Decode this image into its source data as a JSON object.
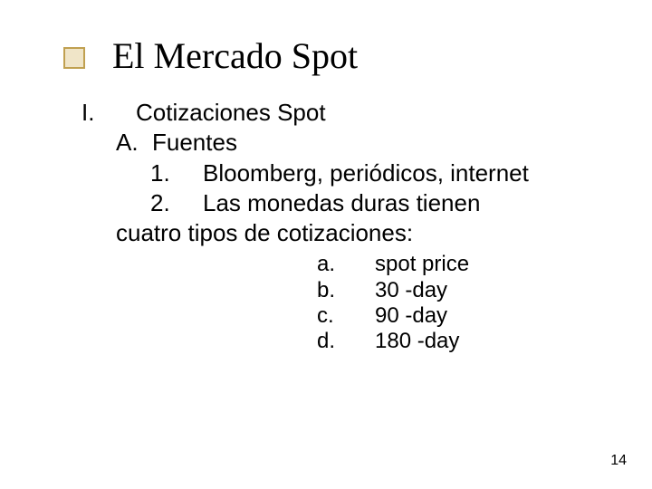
{
  "colors": {
    "bullet_border": "#c0a050",
    "bullet_fill": "#f0e5c8",
    "title_text": "#000000",
    "body_text": "#000000",
    "page_num": "#000000",
    "background": "#ffffff"
  },
  "title": "El Mercado Spot",
  "outline": {
    "level1_marker": "I.",
    "level1_text": "Cotizaciones Spot",
    "level2_marker": "A.",
    "level2_text": "Fuentes",
    "level3_items": [
      {
        "marker": "1.",
        "text": "Bloomberg, periódicos, internet"
      },
      {
        "marker": "2.",
        "text": "Las monedas duras tienen"
      }
    ],
    "level3_continuation": "cuatro tipos de cotizaciones:",
    "sub_items": [
      {
        "marker": "a.",
        "text": "spot price"
      },
      {
        "marker": "b.",
        "text": "30 -day"
      },
      {
        "marker": "c.",
        "text": "90 -day"
      },
      {
        "marker": "d.",
        "text": "180 -day"
      }
    ]
  },
  "page_number": "14",
  "typography": {
    "title_font": "Times New Roman",
    "title_size_pt": 40,
    "body_font": "Verdana",
    "body_size_pt": 26,
    "sublist_size_pt": 24,
    "page_num_size_pt": 16
  }
}
